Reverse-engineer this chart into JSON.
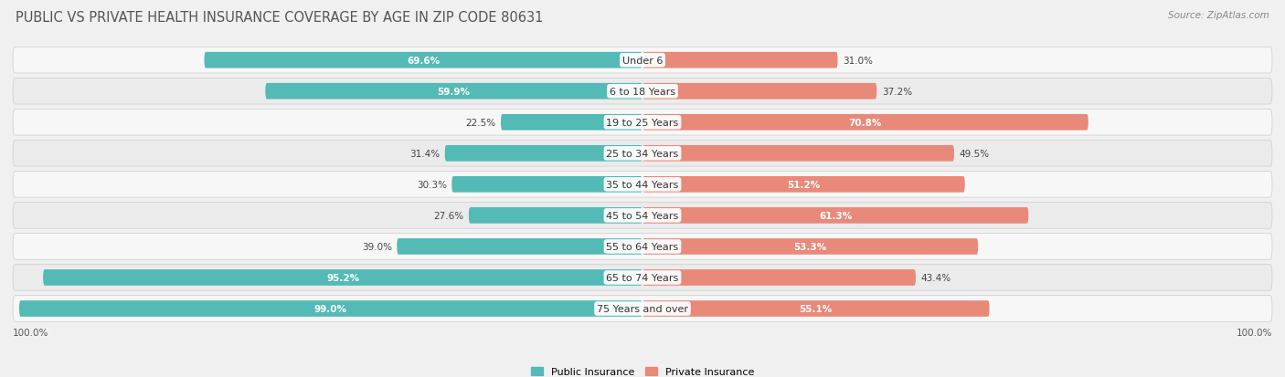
{
  "title": "PUBLIC VS PRIVATE HEALTH INSURANCE COVERAGE BY AGE IN ZIP CODE 80631",
  "source": "Source: ZipAtlas.com",
  "categories": [
    "Under 6",
    "6 to 18 Years",
    "19 to 25 Years",
    "25 to 34 Years",
    "35 to 44 Years",
    "45 to 54 Years",
    "55 to 64 Years",
    "65 to 74 Years",
    "75 Years and over"
  ],
  "public_values": [
    69.6,
    59.9,
    22.5,
    31.4,
    30.3,
    27.6,
    39.0,
    95.2,
    99.0
  ],
  "private_values": [
    31.0,
    37.2,
    70.8,
    49.5,
    51.2,
    61.3,
    53.3,
    43.4,
    55.1
  ],
  "public_color": "#53bab6",
  "private_color": "#e8897a",
  "row_bg_light": "#f7f7f7",
  "row_bg_dark": "#ebebeb",
  "bar_height": 0.52,
  "max_value": 100.0,
  "title_fontsize": 10.5,
  "label_fontsize": 8.0,
  "value_fontsize": 7.5,
  "footer_value": "100.0%"
}
